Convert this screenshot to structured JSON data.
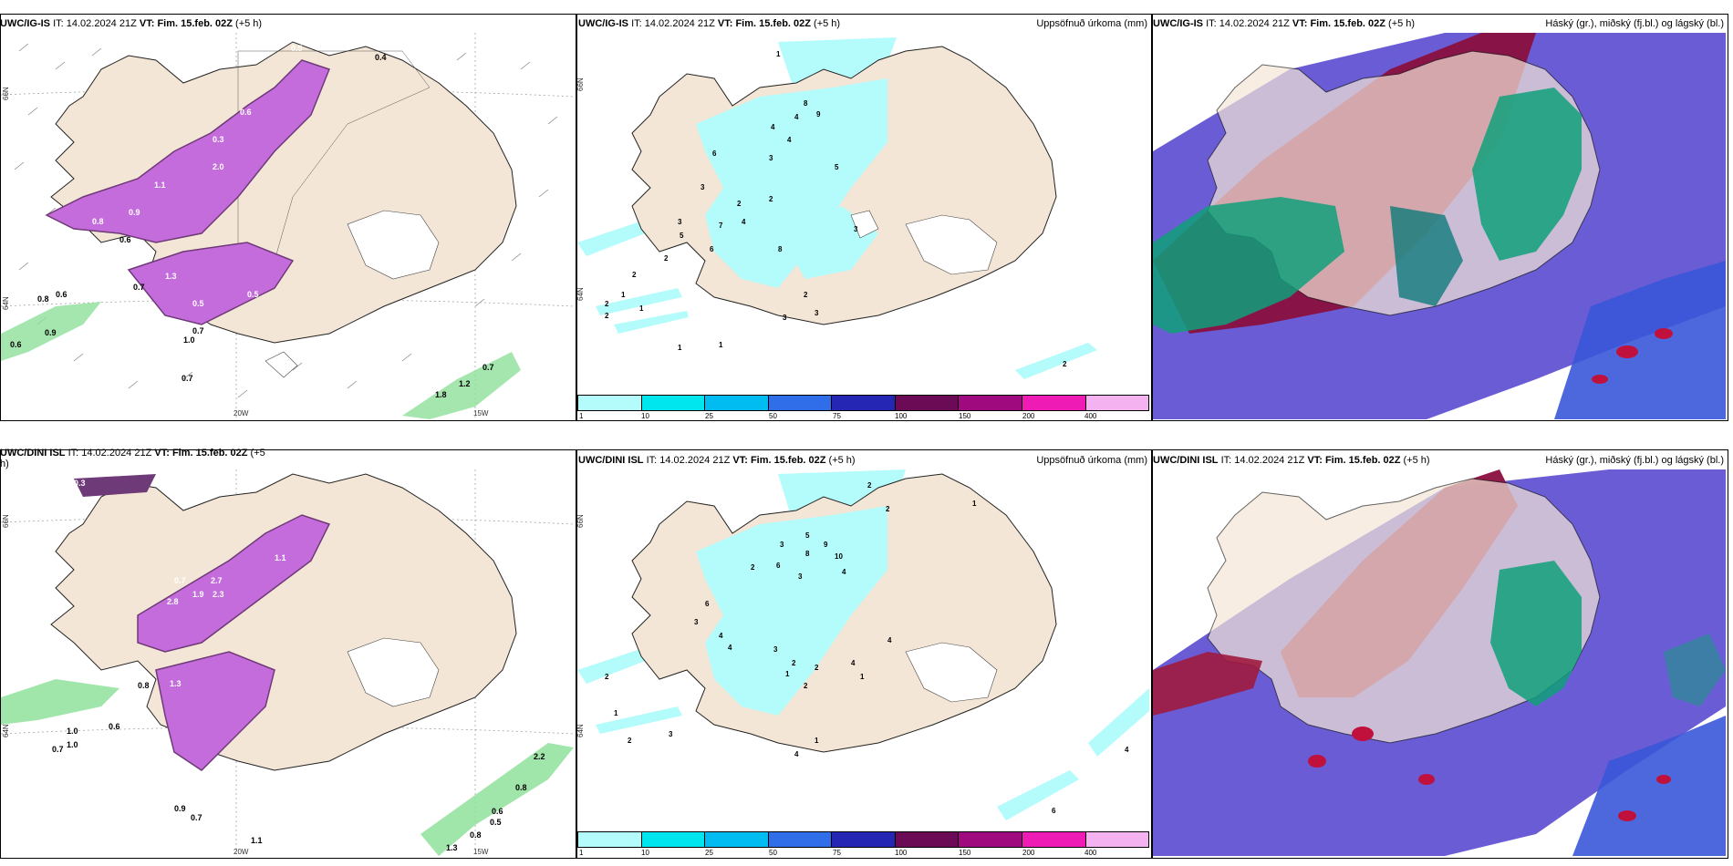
{
  "panels": [
    {
      "id": "top-left",
      "model": "UWC/IG-IS",
      "it_label": "IT:",
      "it_value": "14.02.2024 21Z",
      "vt_label": "VT:",
      "vt_value": "Fim. 15.feb. 02Z",
      "lead": "(+5 h)",
      "right_title": "",
      "lon_labels": [
        "20W",
        "15W"
      ],
      "lat_labels": [
        "66N",
        "64N"
      ],
      "values": [
        "0.5",
        "0.4",
        "0.6",
        "0.3",
        "0.8",
        "0.9",
        "1.1",
        "2.0",
        "1.3",
        "0.5",
        "0.8",
        "0.6",
        "0.7",
        "0.6",
        "0.5",
        "1.0",
        "0.7",
        "0.9",
        "0.6",
        "0.7",
        "1.2",
        "0.7",
        "1.8"
      ]
    },
    {
      "id": "top-middle",
      "model": "UWC/IG-IS",
      "it_label": "IT:",
      "it_value": "14.02.2024 21Z",
      "vt_label": "VT:",
      "vt_value": "Fim. 15.feb. 02Z",
      "lead": "(+5 h)",
      "right_title": "Uppsöfnuð úrkoma (mm)",
      "lat_labels": [
        "66N",
        "64N"
      ],
      "values": [
        "1",
        "4",
        "4",
        "8",
        "9",
        "6",
        "3",
        "4",
        "3",
        "5",
        "2",
        "3",
        "7",
        "6",
        "5",
        "2",
        "4",
        "2",
        "3",
        "8",
        "2",
        "2",
        "1",
        "1",
        "2",
        "1",
        "3",
        "3",
        "1",
        "2",
        "2"
      ]
    },
    {
      "id": "top-right",
      "model": "UWC/IG-IS",
      "it_label": "IT:",
      "it_value": "14.02.2024 21Z",
      "vt_label": "VT:",
      "vt_value": "Fim. 15.feb. 02Z",
      "lead": "(+5 h)",
      "right_title": "Háský (gr.), miðský (fj.bl.) og lágský (bl.)"
    },
    {
      "id": "bottom-left",
      "model": "UWC/DINI ISL",
      "it_label": "IT:",
      "it_value": "14.02.2024 21Z",
      "vt_label": "VT:",
      "vt_value": "Fim. 15.feb. 02Z",
      "lead": "(+5",
      "lead_cont": "h)",
      "right_title": "",
      "lon_labels": [
        "20W",
        "15W"
      ],
      "lat_labels": [
        "66N",
        "64N"
      ],
      "values": [
        "0.3",
        "0.7",
        "1.9",
        "2.7",
        "2.3",
        "2.8",
        "0.8",
        "1.1",
        "1.0",
        "0.6",
        "1.3",
        "0.7",
        "1.0",
        "0.9",
        "0.7",
        "1.1",
        "2.2",
        "0.8",
        "0.6",
        "0.5",
        "0.8",
        "1.3"
      ]
    },
    {
      "id": "bottom-middle",
      "model": "UWC/DINI ISL",
      "it_label": "IT:",
      "it_value": "14.02.2024 21Z",
      "vt_label": "VT:",
      "vt_value": "Fim. 15.feb. 02Z",
      "lead": "(+5 h)",
      "right_title": "Uppsöfnuð úrkoma (mm)",
      "lat_labels": [
        "66N",
        "64N"
      ],
      "values": [
        "2",
        "2",
        "1",
        "5",
        "3",
        "8",
        "9",
        "10",
        "6",
        "3",
        "4",
        "6",
        "3",
        "2",
        "4",
        "4",
        "3",
        "2",
        "1",
        "2",
        "2",
        "1",
        "4",
        "4",
        "2",
        "1",
        "2",
        "3",
        "1",
        "4",
        "4",
        "6"
      ]
    },
    {
      "id": "bottom-right",
      "model": "UWC/DINI ISL",
      "it_label": "IT:",
      "it_value": "14.02.2024 21Z",
      "vt_label": "VT:",
      "vt_value": "Fim. 15.feb. 02Z",
      "lead": "(+5 h)",
      "right_title": "Háský (gr.), miðský (fj.bl.) og lágský (bl.)"
    }
  ],
  "colorbar": {
    "labels": [
      "1",
      "10",
      "25",
      "50",
      "75",
      "100",
      "150",
      "200",
      "400"
    ],
    "colors": [
      "#b4fbfb",
      "#00e6ee",
      "#00bcf0",
      "#2f6ee8",
      "#2626b4",
      "#6b0b55",
      "#a00a7f",
      "#ee1bb4",
      "#f5b2f0"
    ]
  },
  "colors": {
    "land": "#f4e6d6",
    "coast": "#222222",
    "precip_light": "#b4fbfb",
    "snow_purple": "#c56cdc",
    "snow_dark": "#6e3a78",
    "green_rain": "#8fe09a",
    "cloud_high": "#0fa07a",
    "cloud_mid": "#6a3ab8",
    "cloud_low": "#8a0f3e"
  }
}
